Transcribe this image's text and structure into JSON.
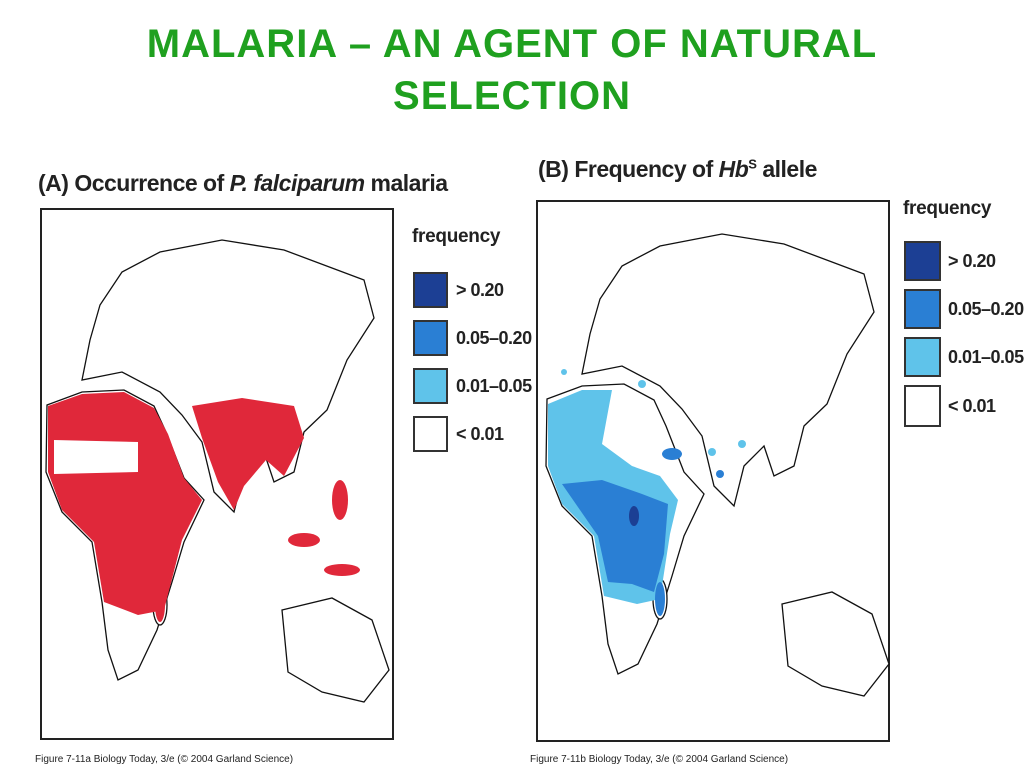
{
  "title": "MALARIA – AN AGENT OF NATURAL SELECTION",
  "panel_a": {
    "title": {
      "prefix": "(A) Occurrence of ",
      "species": "P. falciparum",
      "suffix": " malaria"
    },
    "legend": {
      "title": "frequency",
      "items": [
        "> 0.20",
        "0.05–0.20",
        "0.01–0.05",
        "< 0.01"
      ]
    },
    "caption": "Figure 7-11a  Biology Today, 3/e (© 2004 Garland Science)"
  },
  "panel_b": {
    "title": {
      "prefix": "(B) Frequency of ",
      "gene": "Hb",
      "superscript": "S",
      "suffix": " allele"
    },
    "legend": {
      "title": "frequency",
      "items": [
        "> 0.20",
        "0.05–0.20",
        "0.01–0.05",
        "< 0.01"
      ]
    },
    "caption": "Figure 7-11b  Biology Today, 3/e (© 2004 Garland Science)"
  }
}
